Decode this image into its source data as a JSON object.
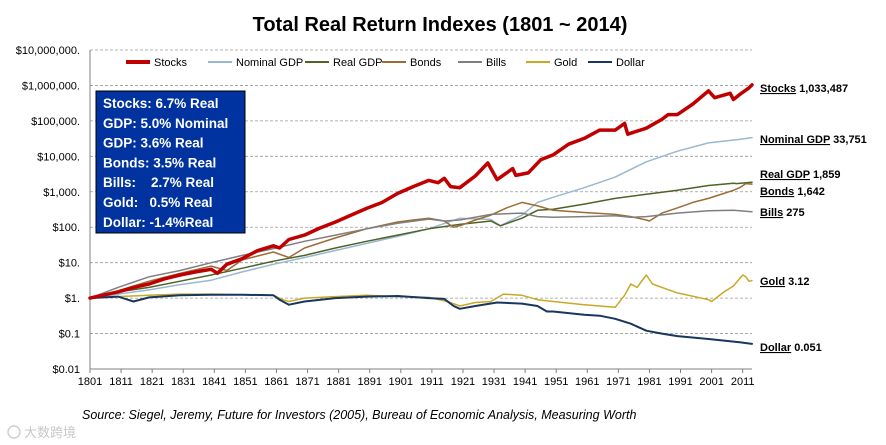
{
  "chart_data": {
    "type": "line",
    "title": "Total Real Return Indexes (1801 ~ 2014)",
    "xlabel": "",
    "ylabel": "",
    "log_scale_y": true,
    "ylim": [
      0.01,
      10000000
    ],
    "xlim": [
      1801,
      2014
    ],
    "grid": true,
    "legend_position": "top",
    "y_ticks": [
      {
        "value": 10000000,
        "label": "$10,000,000."
      },
      {
        "value": 1000000,
        "label": "$1,000,000."
      },
      {
        "value": 100000,
        "label": "$100,000."
      },
      {
        "value": 10000,
        "label": "$10,000."
      },
      {
        "value": 1000,
        "label": "$1,000."
      },
      {
        "value": 100,
        "label": "$100."
      },
      {
        "value": 10,
        "label": "$10."
      },
      {
        "value": 1,
        "label": "$1."
      },
      {
        "value": 0.1,
        "label": "$0.1"
      },
      {
        "value": 0.01,
        "label": "$0.01"
      }
    ],
    "x_ticks": [
      "1801",
      "1811",
      "1821",
      "1831",
      "1841",
      "1851",
      "1861",
      "1871",
      "1881",
      "1891",
      "1901",
      "1911",
      "1921",
      "1931",
      "1941",
      "1951",
      "1961",
      "1971",
      "1981",
      "1991",
      "2001",
      "2011"
    ],
    "series": [
      {
        "name": "Stocks",
        "color": "#c00000",
        "width": 3.5,
        "end_name": "Stocks",
        "end_value": "1,033,487",
        "points": [
          [
            1801,
            1
          ],
          [
            1805,
            1.2
          ],
          [
            1810,
            1.5
          ],
          [
            1815,
            2
          ],
          [
            1820,
            2.5
          ],
          [
            1825,
            3.5
          ],
          [
            1830,
            4.5
          ],
          [
            1835,
            5.5
          ],
          [
            1840,
            6.5
          ],
          [
            1842,
            5
          ],
          [
            1845,
            9
          ],
          [
            1850,
            13
          ],
          [
            1855,
            22
          ],
          [
            1860,
            30
          ],
          [
            1862,
            26
          ],
          [
            1865,
            45
          ],
          [
            1870,
            60
          ],
          [
            1875,
            95
          ],
          [
            1880,
            140
          ],
          [
            1885,
            220
          ],
          [
            1890,
            340
          ],
          [
            1895,
            500
          ],
          [
            1900,
            900
          ],
          [
            1905,
            1400
          ],
          [
            1910,
            2100
          ],
          [
            1913,
            1800
          ],
          [
            1915,
            2400
          ],
          [
            1917,
            1400
          ],
          [
            1920,
            1300
          ],
          [
            1925,
            2800
          ],
          [
            1929,
            6500
          ],
          [
            1932,
            2200
          ],
          [
            1937,
            4500
          ],
          [
            1938,
            2900
          ],
          [
            1942,
            3400
          ],
          [
            1946,
            8000
          ],
          [
            1950,
            11000
          ],
          [
            1955,
            22000
          ],
          [
            1960,
            32000
          ],
          [
            1965,
            55000
          ],
          [
            1970,
            55000
          ],
          [
            1973,
            85000
          ],
          [
            1974,
            42000
          ],
          [
            1980,
            62000
          ],
          [
            1985,
            110000
          ],
          [
            1987,
            150000
          ],
          [
            1990,
            150000
          ],
          [
            1995,
            300000
          ],
          [
            2000,
            700000
          ],
          [
            2002,
            450000
          ],
          [
            2007,
            600000
          ],
          [
            2008,
            400000
          ],
          [
            2010,
            550000
          ],
          [
            2013,
            850000
          ],
          [
            2014,
            1033487
          ]
        ]
      },
      {
        "name": "Nominal GDP",
        "color": "#9ab8d0",
        "width": 1.5,
        "end_name": "Nominal GDP",
        "end_value": "33,751",
        "points": [
          [
            1801,
            1
          ],
          [
            1810,
            1.3
          ],
          [
            1820,
            1.7
          ],
          [
            1830,
            2.4
          ],
          [
            1840,
            3.2
          ],
          [
            1850,
            5.5
          ],
          [
            1860,
            9
          ],
          [
            1870,
            14
          ],
          [
            1880,
            22
          ],
          [
            1890,
            35
          ],
          [
            1900,
            55
          ],
          [
            1910,
            90
          ],
          [
            1920,
            180
          ],
          [
            1930,
            165
          ],
          [
            1933,
            110
          ],
          [
            1940,
            220
          ],
          [
            1945,
            500
          ],
          [
            1950,
            700
          ],
          [
            1960,
            1300
          ],
          [
            1970,
            2600
          ],
          [
            1980,
            7000
          ],
          [
            1990,
            14000
          ],
          [
            2000,
            24000
          ],
          [
            2010,
            30000
          ],
          [
            2014,
            33751
          ]
        ]
      },
      {
        "name": "Real GDP",
        "color": "#4f6228",
        "width": 1.5,
        "end_name": "Real GDP",
        "end_value": "1,859",
        "points": [
          [
            1801,
            1
          ],
          [
            1810,
            1.5
          ],
          [
            1820,
            2
          ],
          [
            1830,
            3
          ],
          [
            1840,
            4.5
          ],
          [
            1850,
            7
          ],
          [
            1860,
            11
          ],
          [
            1870,
            16
          ],
          [
            1880,
            26
          ],
          [
            1890,
            40
          ],
          [
            1900,
            60
          ],
          [
            1910,
            90
          ],
          [
            1920,
            120
          ],
          [
            1930,
            150
          ],
          [
            1933,
            110
          ],
          [
            1940,
            180
          ],
          [
            1945,
            300
          ],
          [
            1950,
            320
          ],
          [
            1960,
            450
          ],
          [
            1970,
            650
          ],
          [
            1980,
            850
          ],
          [
            1990,
            1100
          ],
          [
            2000,
            1500
          ],
          [
            2008,
            1750
          ],
          [
            2009,
            1700
          ],
          [
            2014,
            1859
          ]
        ]
      },
      {
        "name": "Bonds",
        "color": "#9c6b36",
        "width": 1.5,
        "end_name": "Bonds",
        "end_value": "1,642",
        "points": [
          [
            1801,
            1
          ],
          [
            1810,
            1.6
          ],
          [
            1820,
            3
          ],
          [
            1830,
            5
          ],
          [
            1840,
            8
          ],
          [
            1845,
            6
          ],
          [
            1850,
            12
          ],
          [
            1860,
            20
          ],
          [
            1865,
            14
          ],
          [
            1870,
            26
          ],
          [
            1880,
            50
          ],
          [
            1890,
            90
          ],
          [
            1900,
            140
          ],
          [
            1905,
            160
          ],
          [
            1910,
            180
          ],
          [
            1915,
            150
          ],
          [
            1918,
            100
          ],
          [
            1920,
            110
          ],
          [
            1925,
            160
          ],
          [
            1930,
            220
          ],
          [
            1935,
            350
          ],
          [
            1940,
            500
          ],
          [
            1945,
            400
          ],
          [
            1950,
            300
          ],
          [
            1960,
            260
          ],
          [
            1970,
            230
          ],
          [
            1975,
            200
          ],
          [
            1980,
            160
          ],
          [
            1981,
            150
          ],
          [
            1985,
            250
          ],
          [
            1990,
            350
          ],
          [
            1995,
            500
          ],
          [
            2000,
            650
          ],
          [
            2005,
            900
          ],
          [
            2008,
            1100
          ],
          [
            2010,
            1300
          ],
          [
            2012,
            1700
          ],
          [
            2014,
            1642
          ]
        ]
      },
      {
        "name": "Bills",
        "color": "#7f7f7f",
        "width": 1.5,
        "end_name": "Bills",
        "end_value": "275",
        "points": [
          [
            1801,
            1
          ],
          [
            1810,
            2
          ],
          [
            1820,
            4
          ],
          [
            1830,
            6
          ],
          [
            1840,
            10
          ],
          [
            1850,
            16
          ],
          [
            1860,
            25
          ],
          [
            1870,
            40
          ],
          [
            1880,
            60
          ],
          [
            1890,
            90
          ],
          [
            1900,
            130
          ],
          [
            1910,
            170
          ],
          [
            1915,
            150
          ],
          [
            1920,
            160
          ],
          [
            1930,
            230
          ],
          [
            1940,
            250
          ],
          [
            1945,
            200
          ],
          [
            1950,
            190
          ],
          [
            1960,
            200
          ],
          [
            1970,
            210
          ],
          [
            1975,
            190
          ],
          [
            1980,
            200
          ],
          [
            1990,
            250
          ],
          [
            2000,
            290
          ],
          [
            2008,
            300
          ],
          [
            2014,
            275
          ]
        ]
      },
      {
        "name": "Gold",
        "color": "#c9a825",
        "width": 1.5,
        "end_name": "Gold",
        "end_value": "3.12",
        "points": [
          [
            1801,
            1
          ],
          [
            1810,
            1.1
          ],
          [
            1820,
            1.2
          ],
          [
            1830,
            1.3
          ],
          [
            1840,
            1.3
          ],
          [
            1850,
            1.25
          ],
          [
            1860,
            1.2
          ],
          [
            1863,
            0.9
          ],
          [
            1865,
            0.8
          ],
          [
            1870,
            1.0
          ],
          [
            1880,
            1.1
          ],
          [
            1890,
            1.2
          ],
          [
            1900,
            1.1
          ],
          [
            1910,
            1.05
          ],
          [
            1916,
            0.8
          ],
          [
            1920,
            0.6
          ],
          [
            1925,
            0.75
          ],
          [
            1930,
            0.8
          ],
          [
            1934,
            1.3
          ],
          [
            1940,
            1.2
          ],
          [
            1945,
            0.9
          ],
          [
            1950,
            0.8
          ],
          [
            1960,
            0.65
          ],
          [
            1970,
            0.55
          ],
          [
            1973,
            1.2
          ],
          [
            1975,
            2.5
          ],
          [
            1977,
            2.0
          ],
          [
            1980,
            4.5
          ],
          [
            1982,
            2.5
          ],
          [
            1985,
            2.0
          ],
          [
            1990,
            1.4
          ],
          [
            2000,
            0.9
          ],
          [
            2001,
            0.8
          ],
          [
            2005,
            1.5
          ],
          [
            2008,
            2.2
          ],
          [
            2011,
            4.5
          ],
          [
            2012,
            4.0
          ],
          [
            2013,
            3.0
          ],
          [
            2014,
            3.12
          ]
        ]
      },
      {
        "name": "Dollar",
        "color": "#17375e",
        "width": 2,
        "end_name": "Dollar",
        "end_value": "0.051",
        "points": [
          [
            1801,
            1
          ],
          [
            1810,
            1.1
          ],
          [
            1815,
            0.8
          ],
          [
            1820,
            1.05
          ],
          [
            1830,
            1.2
          ],
          [
            1840,
            1.25
          ],
          [
            1850,
            1.25
          ],
          [
            1860,
            1.2
          ],
          [
            1862,
            0.9
          ],
          [
            1865,
            0.65
          ],
          [
            1870,
            0.8
          ],
          [
            1880,
            1.0
          ],
          [
            1890,
            1.1
          ],
          [
            1900,
            1.15
          ],
          [
            1910,
            1.0
          ],
          [
            1915,
            0.95
          ],
          [
            1918,
            0.6
          ],
          [
            1920,
            0.5
          ],
          [
            1925,
            0.6
          ],
          [
            1932,
            0.75
          ],
          [
            1940,
            0.7
          ],
          [
            1945,
            0.6
          ],
          [
            1948,
            0.42
          ],
          [
            1950,
            0.42
          ],
          [
            1960,
            0.34
          ],
          [
            1965,
            0.32
          ],
          [
            1970,
            0.26
          ],
          [
            1975,
            0.19
          ],
          [
            1980,
            0.12
          ],
          [
            1985,
            0.1
          ],
          [
            1990,
            0.085
          ],
          [
            2000,
            0.07
          ],
          [
            2010,
            0.057
          ],
          [
            2014,
            0.051
          ]
        ]
      }
    ],
    "annotation_box": {
      "lines": [
        "Stocks: 6.7% Real",
        "GDP: 5.0% Nominal",
        "GDP: 3.6% Real",
        "Bonds: 3.5% Real",
        "Bills:    2.7% Real",
        "Gold:   0.5% Real",
        "Dollar: -1.4%Real"
      ],
      "background": "#0033a0"
    },
    "source": "Source: Siegel, Jeremy, Future for Investors (2005), Bureau of Economic Analysis, Measuring Worth"
  },
  "watermark": "大数跨境"
}
